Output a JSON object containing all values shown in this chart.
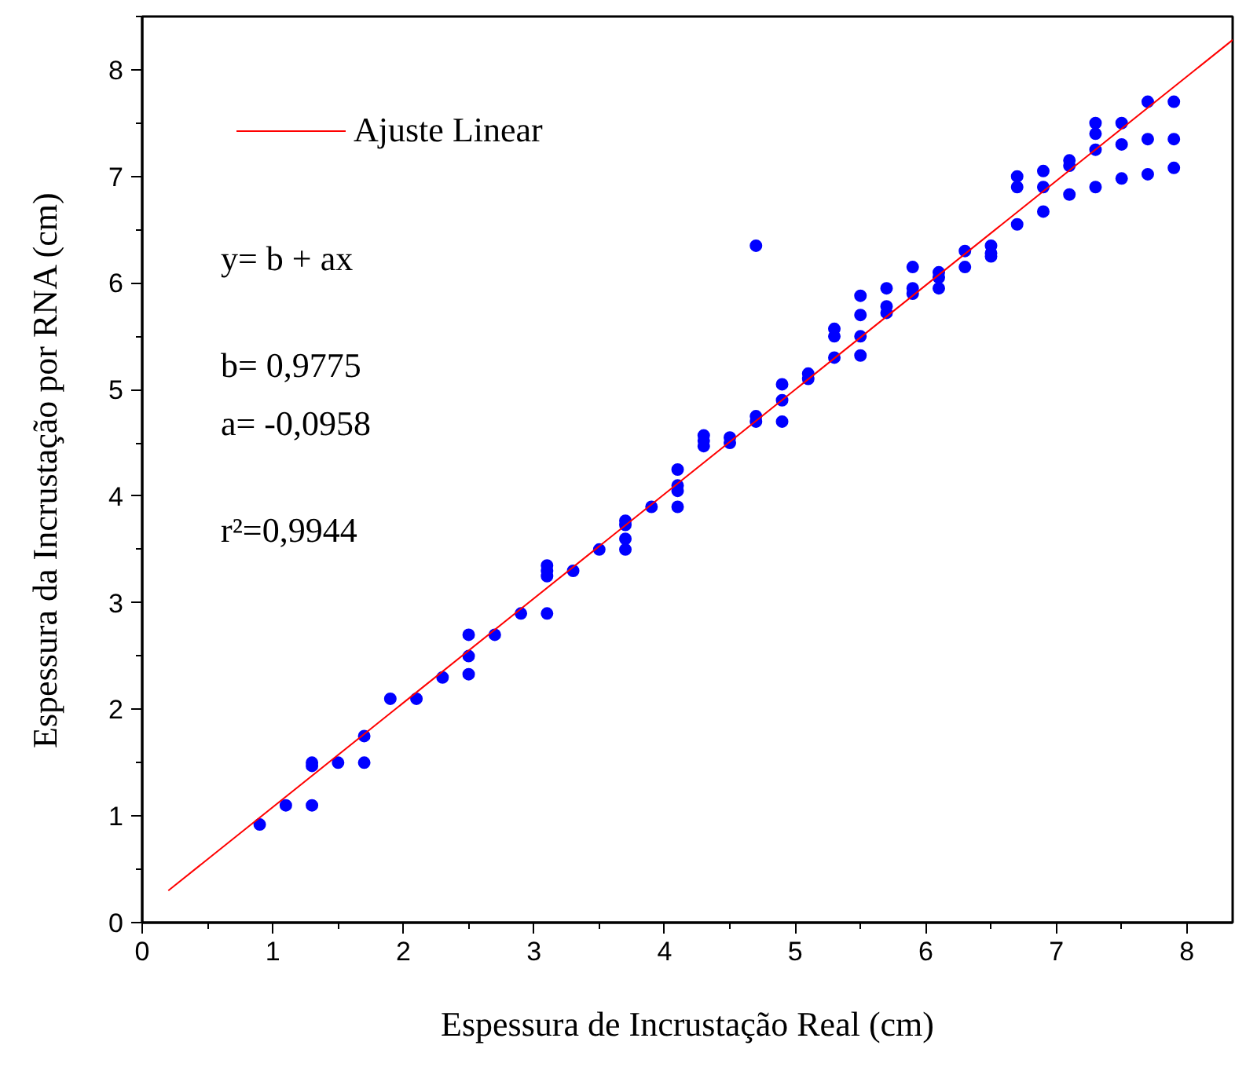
{
  "chart_data": {
    "type": "scatter",
    "xlabel": "Espessura de Incrustação Real (cm)",
    "ylabel": "Espessura da Incrustação por RNA (cm)",
    "xlim": [
      0,
      8.35
    ],
    "ylim": [
      0,
      8.5
    ],
    "xticks": [
      0,
      1,
      2,
      3,
      4,
      5,
      6,
      7,
      8
    ],
    "yticks": [
      0,
      1,
      2,
      3,
      4,
      5,
      6,
      7,
      8
    ],
    "grid": false,
    "legend": "top left",
    "annotations": [
      "y= b + ax",
      "b= 0,9775",
      "a= -0,0958",
      "r²=0,9944"
    ],
    "series": [
      {
        "color": "#0000ff",
        "marker": "circle",
        "x": [
          0.9,
          1.1,
          1.3,
          1.3,
          1.3,
          1.5,
          1.7,
          1.7,
          1.9,
          2.1,
          2.3,
          2.5,
          2.5,
          2.5,
          2.7,
          2.9,
          3.1,
          3.1,
          3.1,
          3.1,
          3.3,
          3.5,
          3.7,
          3.7,
          3.7,
          3.7,
          3.9,
          4.1,
          4.1,
          4.1,
          4.1,
          4.3,
          4.3,
          4.3,
          4.5,
          4.5,
          4.7,
          4.7,
          4.7,
          4.9,
          4.9,
          4.9,
          5.1,
          5.1,
          5.3,
          5.3,
          5.3,
          5.5,
          5.5,
          5.5,
          5.5,
          5.7,
          5.7,
          5.7,
          5.9,
          5.9,
          5.9,
          6.1,
          6.1,
          6.1,
          6.3,
          6.3,
          6.5,
          6.5,
          6.5,
          6.7,
          6.7,
          6.7,
          6.9,
          6.9,
          6.9,
          7.1,
          7.1,
          7.1,
          7.3,
          7.3,
          7.3,
          7.3,
          7.5,
          7.5,
          7.5,
          7.7,
          7.7,
          7.7,
          7.9,
          7.9,
          7.9
        ],
        "values": [
          0.92,
          1.1,
          1.5,
          1.47,
          1.1,
          1.5,
          1.75,
          1.5,
          2.1,
          2.1,
          2.3,
          2.7,
          2.5,
          2.33,
          2.7,
          2.9,
          3.35,
          3.3,
          3.25,
          2.9,
          3.3,
          3.5,
          3.77,
          3.73,
          3.6,
          3.5,
          3.9,
          4.25,
          4.1,
          4.05,
          3.9,
          4.57,
          4.52,
          4.47,
          4.55,
          4.5,
          6.35,
          4.75,
          4.7,
          5.05,
          4.9,
          4.7,
          5.15,
          5.1,
          5.57,
          5.5,
          5.3,
          5.88,
          5.7,
          5.5,
          5.32,
          5.95,
          5.78,
          5.72,
          6.15,
          5.95,
          5.9,
          6.1,
          6.05,
          5.95,
          6.3,
          6.15,
          6.35,
          6.28,
          6.25,
          7.0,
          6.9,
          6.55,
          7.05,
          6.9,
          6.67,
          7.15,
          7.1,
          6.83,
          7.5,
          7.4,
          7.25,
          6.9,
          7.5,
          7.3,
          6.98,
          7.7,
          7.35,
          7.02,
          7.7,
          7.35,
          7.08
        ]
      },
      {
        "type": "line",
        "name": "Ajuste Linear",
        "color": "#ff0000",
        "line_style": "solid",
        "x": [
          0.2,
          8.35
        ],
        "values": [
          0.3,
          8.28
        ]
      }
    ]
  }
}
